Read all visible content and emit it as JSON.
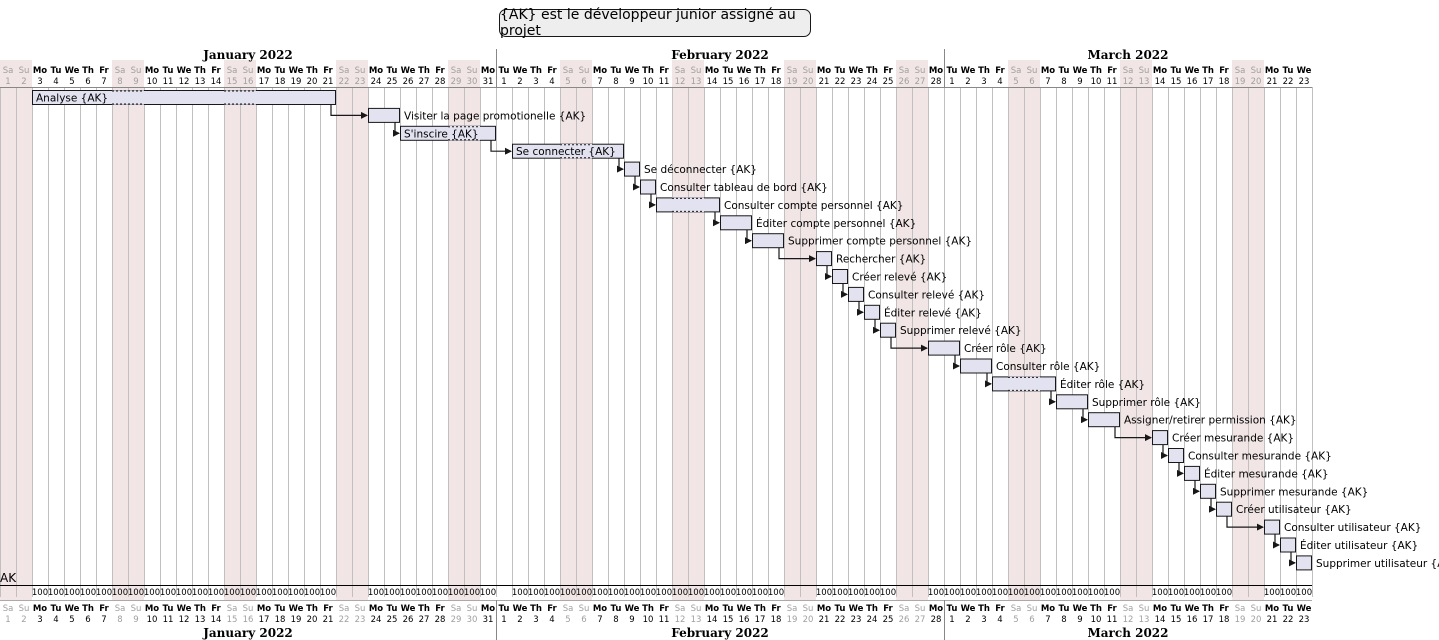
{
  "title": "{AK} est le développeur junior assigné au projet",
  "resource": "AK",
  "chart_data": {
    "type": "gantt",
    "start_date": "2022-01-01",
    "end_date": "2022-03-23",
    "months": [
      {
        "label": "January 2022",
        "start": "2022-01-01",
        "end": "2022-01-31"
      },
      {
        "label": "February 2022",
        "start": "2022-02-01",
        "end": "2022-02-28"
      },
      {
        "label": "March 2022",
        "start": "2022-03-01",
        "end": "2022-03-23"
      }
    ],
    "weekday_abbr": [
      "Su",
      "Mo",
      "Tu",
      "We",
      "Th",
      "Fr",
      "Sa"
    ],
    "tasks": [
      {
        "name": "Analyse {AK}",
        "start": "2022-01-03",
        "end": "2022-01-21"
      },
      {
        "name": "Visiter la page promotionelle {AK}",
        "start": "2022-01-24",
        "end": "2022-01-25"
      },
      {
        "name": "S'inscire {AK}",
        "start": "2022-01-26",
        "end": "2022-01-31"
      },
      {
        "name": "Se connecter {AK}",
        "start": "2022-02-02",
        "end": "2022-02-08"
      },
      {
        "name": "Se déconnecter {AK}",
        "start": "2022-02-09",
        "end": "2022-02-09"
      },
      {
        "name": "Consulter tableau de bord {AK}",
        "start": "2022-02-10",
        "end": "2022-02-10"
      },
      {
        "name": "Consulter compte personnel {AK}",
        "start": "2022-02-11",
        "end": "2022-02-14"
      },
      {
        "name": "Éditer compte personnel {AK}",
        "start": "2022-02-15",
        "end": "2022-02-16"
      },
      {
        "name": "Supprimer compte personnel {AK}",
        "start": "2022-02-17",
        "end": "2022-02-18"
      },
      {
        "name": "Rechercher {AK}",
        "start": "2022-02-21",
        "end": "2022-02-21"
      },
      {
        "name": "Créer relevé {AK}",
        "start": "2022-02-22",
        "end": "2022-02-22"
      },
      {
        "name": "Consulter relevé {AK}",
        "start": "2022-02-23",
        "end": "2022-02-23"
      },
      {
        "name": "Éditer relevé {AK}",
        "start": "2022-02-24",
        "end": "2022-02-24"
      },
      {
        "name": "Supprimer relevé {AK}",
        "start": "2022-02-25",
        "end": "2022-02-25"
      },
      {
        "name": "Créer rôle {AK}",
        "start": "2022-02-28",
        "end": "2022-03-01"
      },
      {
        "name": "Consulter rôle {AK}",
        "start": "2022-03-02",
        "end": "2022-03-03"
      },
      {
        "name": "Éditer rôle {AK}",
        "start": "2022-03-04",
        "end": "2022-03-07"
      },
      {
        "name": "Supprimer rôle {AK}",
        "start": "2022-03-08",
        "end": "2022-03-09"
      },
      {
        "name": "Assigner/retirer permission {AK}",
        "start": "2022-03-10",
        "end": "2022-03-11"
      },
      {
        "name": "Créer mesurande {AK}",
        "start": "2022-03-14",
        "end": "2022-03-14"
      },
      {
        "name": "Consulter mesurande {AK}",
        "start": "2022-03-15",
        "end": "2022-03-15"
      },
      {
        "name": "Éditer mesurande {AK}",
        "start": "2022-03-16",
        "end": "2022-03-16"
      },
      {
        "name": "Supprimer mesurande {AK}",
        "start": "2022-03-17",
        "end": "2022-03-17"
      },
      {
        "name": "Créer utilisateur {AK}",
        "start": "2022-03-18",
        "end": "2022-03-18"
      },
      {
        "name": "Consulter utilisateur {AK}",
        "start": "2022-03-21",
        "end": "2022-03-21"
      },
      {
        "name": "Éditer utilisateur {AK}",
        "start": "2022-03-22",
        "end": "2022-03-22"
      },
      {
        "name": "Supprimer utilisateur {AK}",
        "start": "2022-03-23",
        "end": "2022-03-23"
      }
    ],
    "load_value": "100",
    "colors": {
      "task_fill": "#e2e2f0",
      "task_border": "#181818",
      "weekend": "#f1e5e5",
      "grid": "#c0c0c0",
      "title_box": "#eeeeee"
    }
  }
}
